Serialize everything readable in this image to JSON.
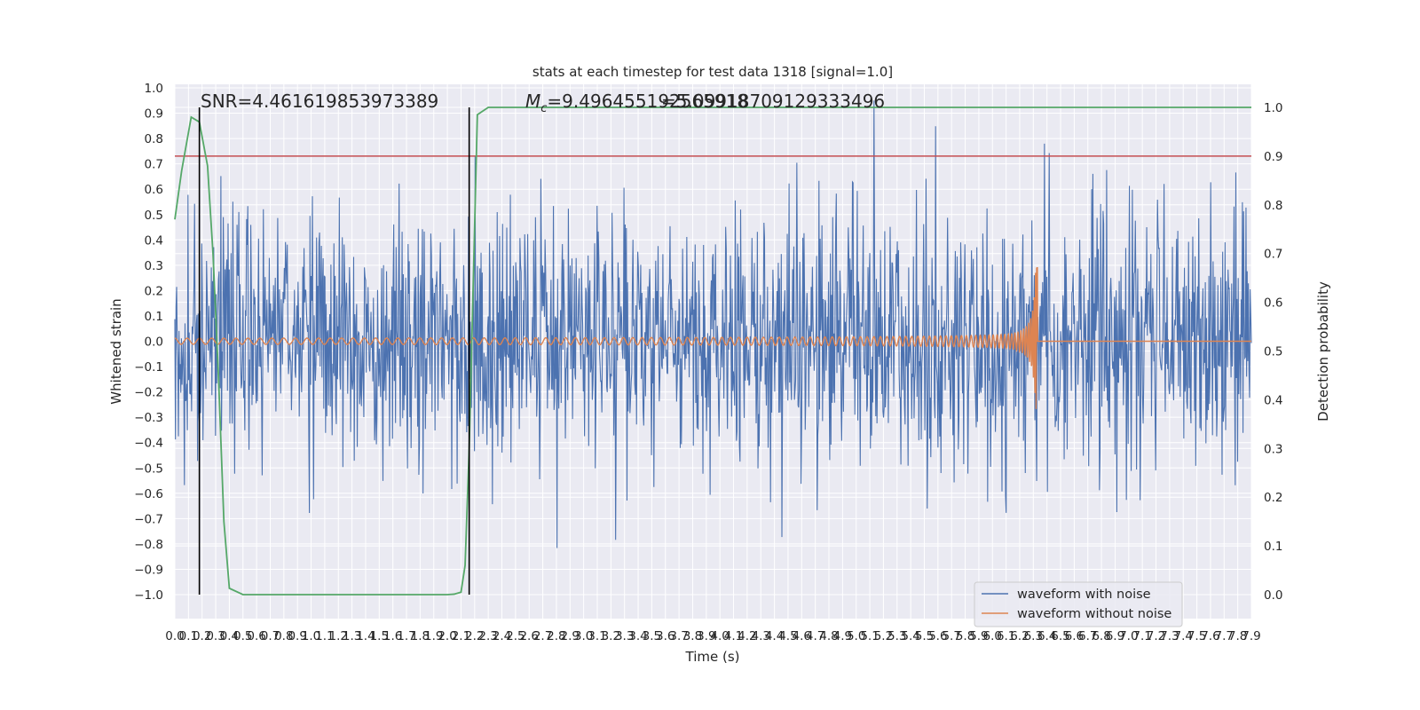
{
  "chart_data": {
    "type": "line",
    "title": "stats at each timestep for test data 1318 [signal=1.0]",
    "xlabel": "Time (s)",
    "ylabel_left": "Whitened strain",
    "ylabel_right": "Detection probability",
    "xlim": [
      0.0,
      7.9
    ],
    "ylim_left": [
      -1.0,
      1.0
    ],
    "ylim_right": [
      0.0,
      1.0
    ],
    "grid": true,
    "legend_location": "lower right",
    "x_ticks": [
      "0.0",
      "0.1",
      "0.2",
      "0.3",
      "0.4",
      "0.5",
      "0.6",
      "0.7",
      "0.8",
      "0.9",
      "1.0",
      "1.1",
      "1.2",
      "1.3",
      "1.4",
      "1.5",
      "1.6",
      "1.7",
      "1.8",
      "1.9",
      "2.0",
      "2.1",
      "2.2",
      "2.3",
      "2.4",
      "2.5",
      "2.6",
      "2.7",
      "2.8",
      "2.9",
      "3.0",
      "3.1",
      "3.2",
      "3.3",
      "3.4",
      "3.5",
      "3.6",
      "3.7",
      "3.8",
      "3.9",
      "4.0",
      "4.1",
      "4.2",
      "4.3",
      "4.4",
      "4.5",
      "4.6",
      "4.7",
      "4.8",
      "4.9",
      "5.0",
      "5.1",
      "5.2",
      "5.3",
      "5.4",
      "5.5",
      "5.6",
      "5.7",
      "5.8",
      "5.9",
      "6.0",
      "6.1",
      "6.2",
      "6.3",
      "6.4",
      "6.5",
      "6.6",
      "6.7",
      "6.8",
      "6.9",
      "7.0",
      "7.1",
      "7.2",
      "7.3",
      "7.4",
      "7.5",
      "7.6",
      "7.7",
      "7.8",
      "7.9"
    ],
    "y_ticks_left": [
      "1.0",
      "0.9",
      "0.8",
      "0.7",
      "0.6",
      "0.5",
      "0.4",
      "0.3",
      "0.2",
      "0.1",
      "0.0",
      "−0.1",
      "−0.2",
      "−0.3",
      "−0.4",
      "−0.5",
      "−0.6",
      "−0.7",
      "−0.8",
      "−0.9",
      "−1.0"
    ],
    "y_ticks_right": [
      "1.0",
      "0.9",
      "0.8",
      "0.7",
      "0.6",
      "0.5",
      "0.4",
      "0.3",
      "0.2",
      "0.1",
      "0.0"
    ],
    "annotations": {
      "snr": "SNR=4.461619853973389",
      "mc_symbol": "M",
      "mc_subscript": "c",
      "mc_value": "=9.496455192565918",
      "mc_overlap": "=5.09918709129333496"
    },
    "series": [
      {
        "name": "waveform with noise",
        "axis": "left",
        "color": "#4c72b0",
        "kind": "noise",
        "x_range": [
          0.0,
          7.9
        ],
        "typical_envelope": 0.45,
        "max_abs": 1.0
      },
      {
        "name": "waveform without noise",
        "axis": "left",
        "color": "#dd8452",
        "kind": "chirp",
        "x_range": [
          0.0,
          7.9
        ],
        "merger_time": 6.33,
        "early_amplitude": 0.012,
        "peak_amplitude": 0.295
      }
    ],
    "detection_probability": {
      "axis": "right",
      "color": "#55a868",
      "x": [
        0.0,
        0.05,
        0.12,
        0.18,
        0.24,
        0.28,
        0.32,
        0.36,
        0.4,
        0.5,
        1.0,
        1.5,
        2.0,
        2.05,
        2.1,
        2.13,
        2.16,
        2.22,
        2.3,
        2.5,
        3.0,
        4.0,
        5.0,
        6.0,
        7.0,
        7.9
      ],
      "y": [
        0.77,
        0.87,
        0.98,
        0.97,
        0.88,
        0.7,
        0.45,
        0.15,
        0.013,
        0.0,
        0.0,
        0.0,
        0.0,
        0.001,
        0.005,
        0.06,
        0.3,
        0.985,
        1.0,
        1.0,
        1.0,
        1.0,
        1.0,
        1.0,
        1.0,
        1.0
      ]
    },
    "threshold_line": {
      "axis": "right",
      "value": 0.9,
      "color": "#c44e52"
    },
    "vertical_markers": {
      "x": [
        0.18,
        2.16
      ],
      "color": "#000000"
    }
  },
  "legend": {
    "items": [
      {
        "label": "waveform with noise",
        "color": "#4c72b0"
      },
      {
        "label": "waveform without noise",
        "color": "#dd8452"
      }
    ]
  },
  "colors": {
    "plot_background": "#eaeaf2",
    "grid": "#ffffff",
    "text": "#262626"
  }
}
